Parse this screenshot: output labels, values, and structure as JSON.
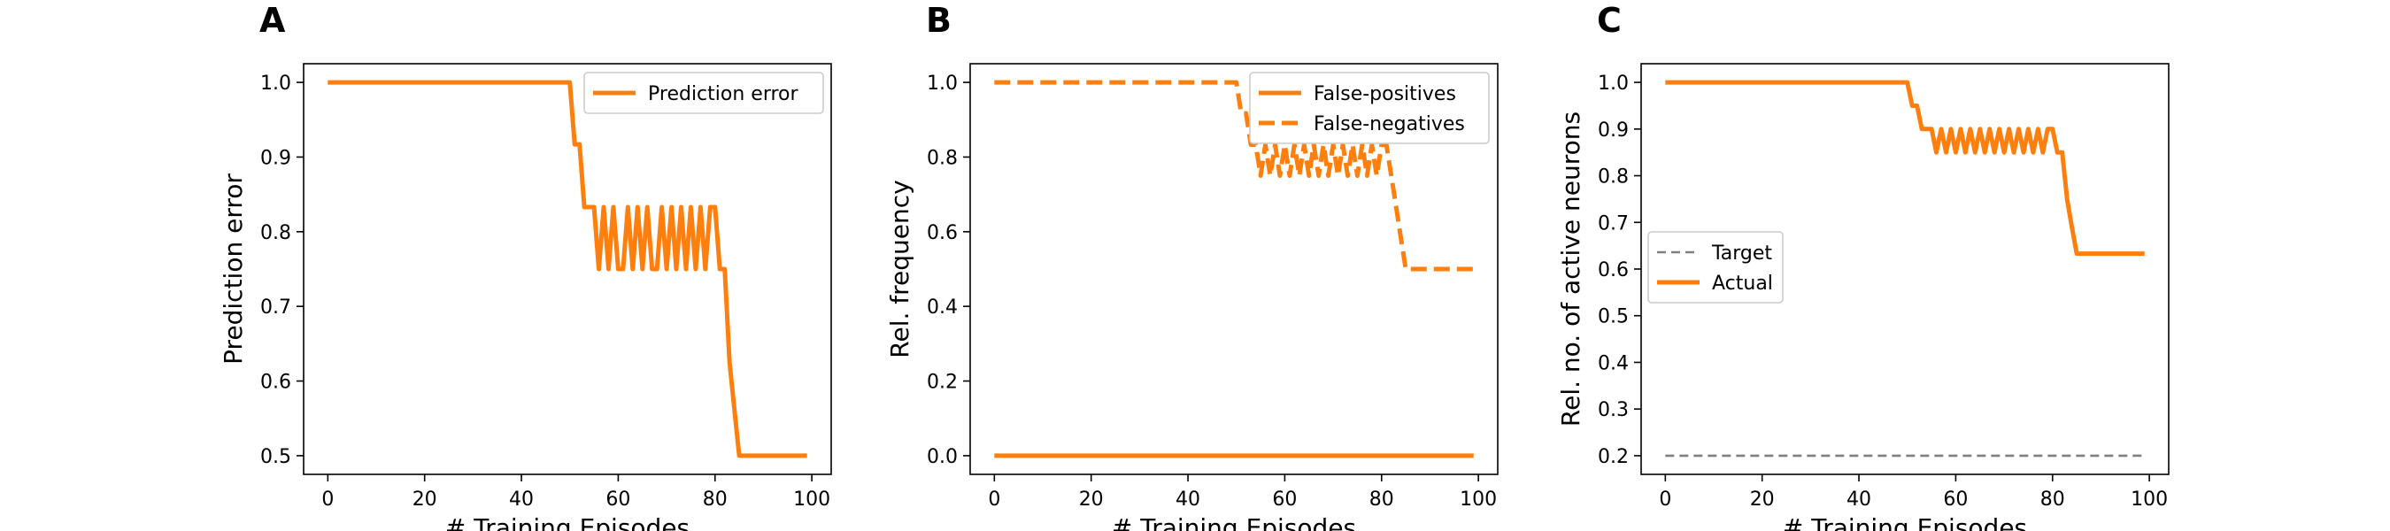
{
  "colors": {
    "series": "#ff7f0e",
    "target": "#808080"
  },
  "charts": [
    {
      "panel_label": "A",
      "type": "line",
      "xlabel": "# Training Episodes",
      "ylabel": "Prediction error",
      "xlim": [
        -5,
        104
      ],
      "ylim": [
        0.475,
        1.025
      ],
      "xticks": [
        0,
        20,
        40,
        60,
        80,
        100
      ],
      "yticks": [
        0.5,
        0.6,
        0.7,
        0.8,
        0.9,
        1.0
      ],
      "ytick_labels": [
        "0.5",
        "0.6",
        "0.7",
        "0.8",
        "0.9",
        "1.0"
      ],
      "legend_position": "upper right",
      "series": [
        {
          "name": "Prediction error",
          "style": "solid",
          "color": "#ff7f0e",
          "x": [
            0,
            50,
            51,
            52,
            53,
            54,
            55,
            56,
            57,
            58,
            59,
            60,
            61,
            62,
            63,
            64,
            65,
            66,
            67,
            68,
            69,
            70,
            71,
            72,
            73,
            74,
            75,
            76,
            77,
            78,
            79,
            80,
            81,
            82,
            83,
            84,
            85,
            86,
            87,
            88,
            99
          ],
          "y": [
            1.0,
            1.0,
            0.917,
            0.917,
            0.833,
            0.833,
            0.833,
            0.75,
            0.833,
            0.75,
            0.833,
            0.75,
            0.75,
            0.833,
            0.75,
            0.833,
            0.75,
            0.833,
            0.75,
            0.75,
            0.833,
            0.75,
            0.833,
            0.75,
            0.833,
            0.75,
            0.833,
            0.75,
            0.833,
            0.75,
            0.833,
            0.833,
            0.75,
            0.75,
            0.625,
            0.5625,
            0.5,
            0.5,
            0.5,
            0.5,
            0.5
          ]
        }
      ]
    },
    {
      "panel_label": "B",
      "type": "line",
      "xlabel": "# Training Episodes",
      "ylabel": "Rel. frequency",
      "xlim": [
        -5,
        104
      ],
      "ylim": [
        -0.05,
        1.05
      ],
      "xticks": [
        0,
        20,
        40,
        60,
        80,
        100
      ],
      "yticks": [
        0.0,
        0.2,
        0.4,
        0.6,
        0.8,
        1.0
      ],
      "ytick_labels": [
        "0.0",
        "0.2",
        "0.4",
        "0.6",
        "0.8",
        "1.0"
      ],
      "legend_position": "upper right",
      "series": [
        {
          "name": "False-positives",
          "style": "solid",
          "color": "#ff7f0e",
          "x": [
            0,
            99
          ],
          "y": [
            0.0,
            0.0
          ]
        },
        {
          "name": "False-negatives",
          "style": "dashed",
          "color": "#ff7f0e",
          "x": [
            0,
            50,
            51,
            52,
            53,
            54,
            55,
            56,
            57,
            58,
            59,
            60,
            61,
            62,
            63,
            64,
            65,
            66,
            67,
            68,
            69,
            70,
            71,
            72,
            73,
            74,
            75,
            76,
            77,
            78,
            79,
            80,
            81,
            82,
            83,
            84,
            85,
            86,
            87,
            88,
            99
          ],
          "y": [
            1.0,
            1.0,
            0.917,
            0.917,
            0.833,
            0.833,
            0.75,
            0.833,
            0.75,
            0.833,
            0.75,
            0.833,
            0.75,
            0.833,
            0.75,
            0.833,
            0.75,
            0.833,
            0.75,
            0.833,
            0.75,
            0.833,
            0.75,
            0.833,
            0.75,
            0.833,
            0.75,
            0.833,
            0.75,
            0.833,
            0.75,
            0.833,
            0.833,
            0.75,
            0.667,
            0.583,
            0.5,
            0.5,
            0.5,
            0.5,
            0.5
          ]
        }
      ]
    },
    {
      "panel_label": "C",
      "type": "line",
      "xlabel": "# Training Episodes",
      "ylabel": "Rel. no. of active neurons",
      "xlim": [
        -5,
        104
      ],
      "ylim": [
        0.16,
        1.04
      ],
      "xticks": [
        0,
        20,
        40,
        60,
        80,
        100
      ],
      "yticks": [
        0.2,
        0.3,
        0.4,
        0.5,
        0.6,
        0.7,
        0.8,
        0.9,
        1.0
      ],
      "ytick_labels": [
        "0.2",
        "0.3",
        "0.4",
        "0.5",
        "0.6",
        "0.7",
        "0.8",
        "0.9",
        "1.0"
      ],
      "legend_position": "center left",
      "series": [
        {
          "name": "Target",
          "style": "dashed-thin",
          "color": "#808080",
          "x": [
            0,
            99
          ],
          "y": [
            0.2,
            0.2
          ]
        },
        {
          "name": "Actual",
          "style": "solid",
          "color": "#ff7f0e",
          "x": [
            0,
            50,
            51,
            52,
            53,
            54,
            55,
            56,
            57,
            58,
            59,
            60,
            61,
            62,
            63,
            64,
            65,
            66,
            67,
            68,
            69,
            70,
            71,
            72,
            73,
            74,
            75,
            76,
            77,
            78,
            79,
            80,
            81,
            82,
            83,
            84,
            85,
            86,
            87,
            88,
            99
          ],
          "y": [
            1.0,
            1.0,
            0.95,
            0.95,
            0.9,
            0.9,
            0.9,
            0.85,
            0.9,
            0.85,
            0.9,
            0.85,
            0.9,
            0.85,
            0.9,
            0.85,
            0.9,
            0.85,
            0.9,
            0.85,
            0.9,
            0.85,
            0.9,
            0.85,
            0.9,
            0.85,
            0.9,
            0.85,
            0.9,
            0.85,
            0.9,
            0.9,
            0.85,
            0.85,
            0.75,
            0.69,
            0.633,
            0.633,
            0.633,
            0.633,
            0.633
          ]
        }
      ]
    }
  ],
  "chart_data": [
    {
      "type": "line",
      "title": "",
      "xlabel": "# Training Episodes",
      "ylabel": "Prediction error",
      "xlim": [
        -5,
        104
      ],
      "ylim": [
        0.475,
        1.025
      ],
      "series": [
        {
          "name": "Prediction error",
          "x": [
            0,
            50,
            51,
            52,
            53,
            54,
            55,
            56,
            57,
            58,
            59,
            60,
            61,
            62,
            63,
            64,
            65,
            66,
            67,
            68,
            69,
            70,
            71,
            72,
            73,
            74,
            75,
            76,
            77,
            78,
            79,
            80,
            81,
            82,
            83,
            84,
            85,
            86,
            87,
            88,
            99
          ],
          "y": [
            1.0,
            1.0,
            0.917,
            0.917,
            0.833,
            0.833,
            0.833,
            0.75,
            0.833,
            0.75,
            0.833,
            0.75,
            0.75,
            0.833,
            0.75,
            0.833,
            0.75,
            0.833,
            0.75,
            0.75,
            0.833,
            0.75,
            0.833,
            0.75,
            0.833,
            0.75,
            0.833,
            0.75,
            0.833,
            0.75,
            0.833,
            0.833,
            0.75,
            0.75,
            0.625,
            0.5625,
            0.5,
            0.5,
            0.5,
            0.5,
            0.5
          ]
        }
      ]
    },
    {
      "type": "line",
      "title": "",
      "xlabel": "# Training Episodes",
      "ylabel": "Rel. frequency",
      "xlim": [
        -5,
        104
      ],
      "ylim": [
        -0.05,
        1.05
      ],
      "series": [
        {
          "name": "False-positives",
          "x": [
            0,
            99
          ],
          "y": [
            0.0,
            0.0
          ]
        },
        {
          "name": "False-negatives",
          "x": [
            0,
            50,
            51,
            52,
            53,
            54,
            55,
            56,
            57,
            58,
            59,
            60,
            61,
            62,
            63,
            64,
            65,
            66,
            67,
            68,
            69,
            70,
            71,
            72,
            73,
            74,
            75,
            76,
            77,
            78,
            79,
            80,
            81,
            82,
            83,
            84,
            85,
            86,
            87,
            88,
            99
          ],
          "y": [
            1.0,
            1.0,
            0.917,
            0.917,
            0.833,
            0.833,
            0.75,
            0.833,
            0.75,
            0.833,
            0.75,
            0.833,
            0.75,
            0.833,
            0.75,
            0.833,
            0.75,
            0.833,
            0.75,
            0.833,
            0.75,
            0.833,
            0.75,
            0.833,
            0.75,
            0.833,
            0.75,
            0.833,
            0.75,
            0.833,
            0.75,
            0.833,
            0.833,
            0.75,
            0.667,
            0.583,
            0.5,
            0.5,
            0.5,
            0.5,
            0.5
          ]
        }
      ]
    },
    {
      "type": "line",
      "title": "",
      "xlabel": "# Training Episodes",
      "ylabel": "Rel. no. of active neurons",
      "xlim": [
        -5,
        104
      ],
      "ylim": [
        0.16,
        1.04
      ],
      "series": [
        {
          "name": "Target",
          "x": [
            0,
            99
          ],
          "y": [
            0.2,
            0.2
          ]
        },
        {
          "name": "Actual",
          "x": [
            0,
            50,
            51,
            52,
            53,
            54,
            55,
            56,
            57,
            58,
            59,
            60,
            61,
            62,
            63,
            64,
            65,
            66,
            67,
            68,
            69,
            70,
            71,
            72,
            73,
            74,
            75,
            76,
            77,
            78,
            79,
            80,
            81,
            82,
            83,
            84,
            85,
            86,
            87,
            88,
            99
          ],
          "y": [
            1.0,
            1.0,
            0.95,
            0.95,
            0.9,
            0.9,
            0.9,
            0.85,
            0.9,
            0.85,
            0.9,
            0.85,
            0.9,
            0.85,
            0.9,
            0.85,
            0.9,
            0.85,
            0.9,
            0.85,
            0.9,
            0.85,
            0.9,
            0.85,
            0.9,
            0.85,
            0.9,
            0.85,
            0.9,
            0.85,
            0.9,
            0.9,
            0.85,
            0.85,
            0.75,
            0.69,
            0.633,
            0.633,
            0.633,
            0.633,
            0.633
          ]
        }
      ]
    }
  ]
}
